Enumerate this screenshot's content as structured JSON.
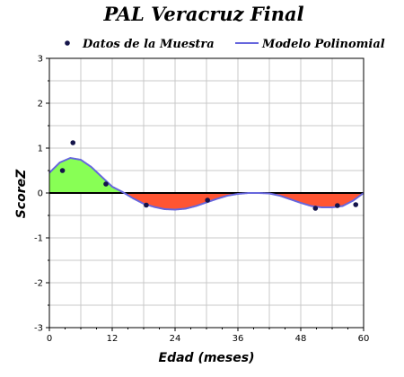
{
  "chart_data": {
    "type": "line",
    "title": "PAL Veracruz Final",
    "xlabel": "Edad (meses)",
    "ylabel": "ScoreZ",
    "xlim": [
      0,
      60
    ],
    "ylim": [
      -3,
      3
    ],
    "x_ticks": [
      "0",
      "12",
      "24",
      "36",
      "48",
      "60"
    ],
    "y_ticks": [
      "-3",
      "-2",
      "-1",
      "0",
      "1",
      "2",
      "3"
    ],
    "grid": true,
    "legend": {
      "placement": "top"
    },
    "series": [
      {
        "name": "Datos de la Muestra",
        "kind": "scatter",
        "color": "#14144a",
        "points": [
          {
            "x": 2.5,
            "y": 0.5
          },
          {
            "x": 4.5,
            "y": 1.12
          },
          {
            "x": 10.8,
            "y": 0.2
          },
          {
            "x": 18.5,
            "y": -0.27
          },
          {
            "x": 30.2,
            "y": -0.16
          },
          {
            "x": 50.8,
            "y": -0.34
          },
          {
            "x": 55.0,
            "y": -0.28
          },
          {
            "x": 58.5,
            "y": -0.26
          }
        ]
      },
      {
        "name": "Modelo Polinomial",
        "kind": "line",
        "color": "#6666dd",
        "points": [
          {
            "x": 0,
            "y": 0.45
          },
          {
            "x": 2,
            "y": 0.68
          },
          {
            "x": 4,
            "y": 0.78
          },
          {
            "x": 6,
            "y": 0.74
          },
          {
            "x": 8,
            "y": 0.58
          },
          {
            "x": 10,
            "y": 0.36
          },
          {
            "x": 12,
            "y": 0.14
          },
          {
            "x": 14,
            "y": 0.02
          },
          {
            "x": 16,
            "y": -0.12
          },
          {
            "x": 18,
            "y": -0.24
          },
          {
            "x": 20,
            "y": -0.31
          },
          {
            "x": 22,
            "y": -0.36
          },
          {
            "x": 24,
            "y": -0.37
          },
          {
            "x": 26,
            "y": -0.35
          },
          {
            "x": 28,
            "y": -0.29
          },
          {
            "x": 30,
            "y": -0.21
          },
          {
            "x": 32,
            "y": -0.13
          },
          {
            "x": 34,
            "y": -0.06
          },
          {
            "x": 36,
            "y": -0.02
          },
          {
            "x": 38,
            "y": 0.0
          },
          {
            "x": 40,
            "y": 0.0
          },
          {
            "x": 42,
            "y": -0.01
          },
          {
            "x": 44,
            "y": -0.06
          },
          {
            "x": 46,
            "y": -0.14
          },
          {
            "x": 48,
            "y": -0.22
          },
          {
            "x": 50,
            "y": -0.29
          },
          {
            "x": 52,
            "y": -0.32
          },
          {
            "x": 54,
            "y": -0.32
          },
          {
            "x": 56,
            "y": -0.29
          },
          {
            "x": 58,
            "y": -0.17
          },
          {
            "x": 60,
            "y": 0.0
          }
        ]
      }
    ],
    "fill": {
      "positive_color": "#88ff55",
      "negative_color": "#ff5533"
    }
  }
}
